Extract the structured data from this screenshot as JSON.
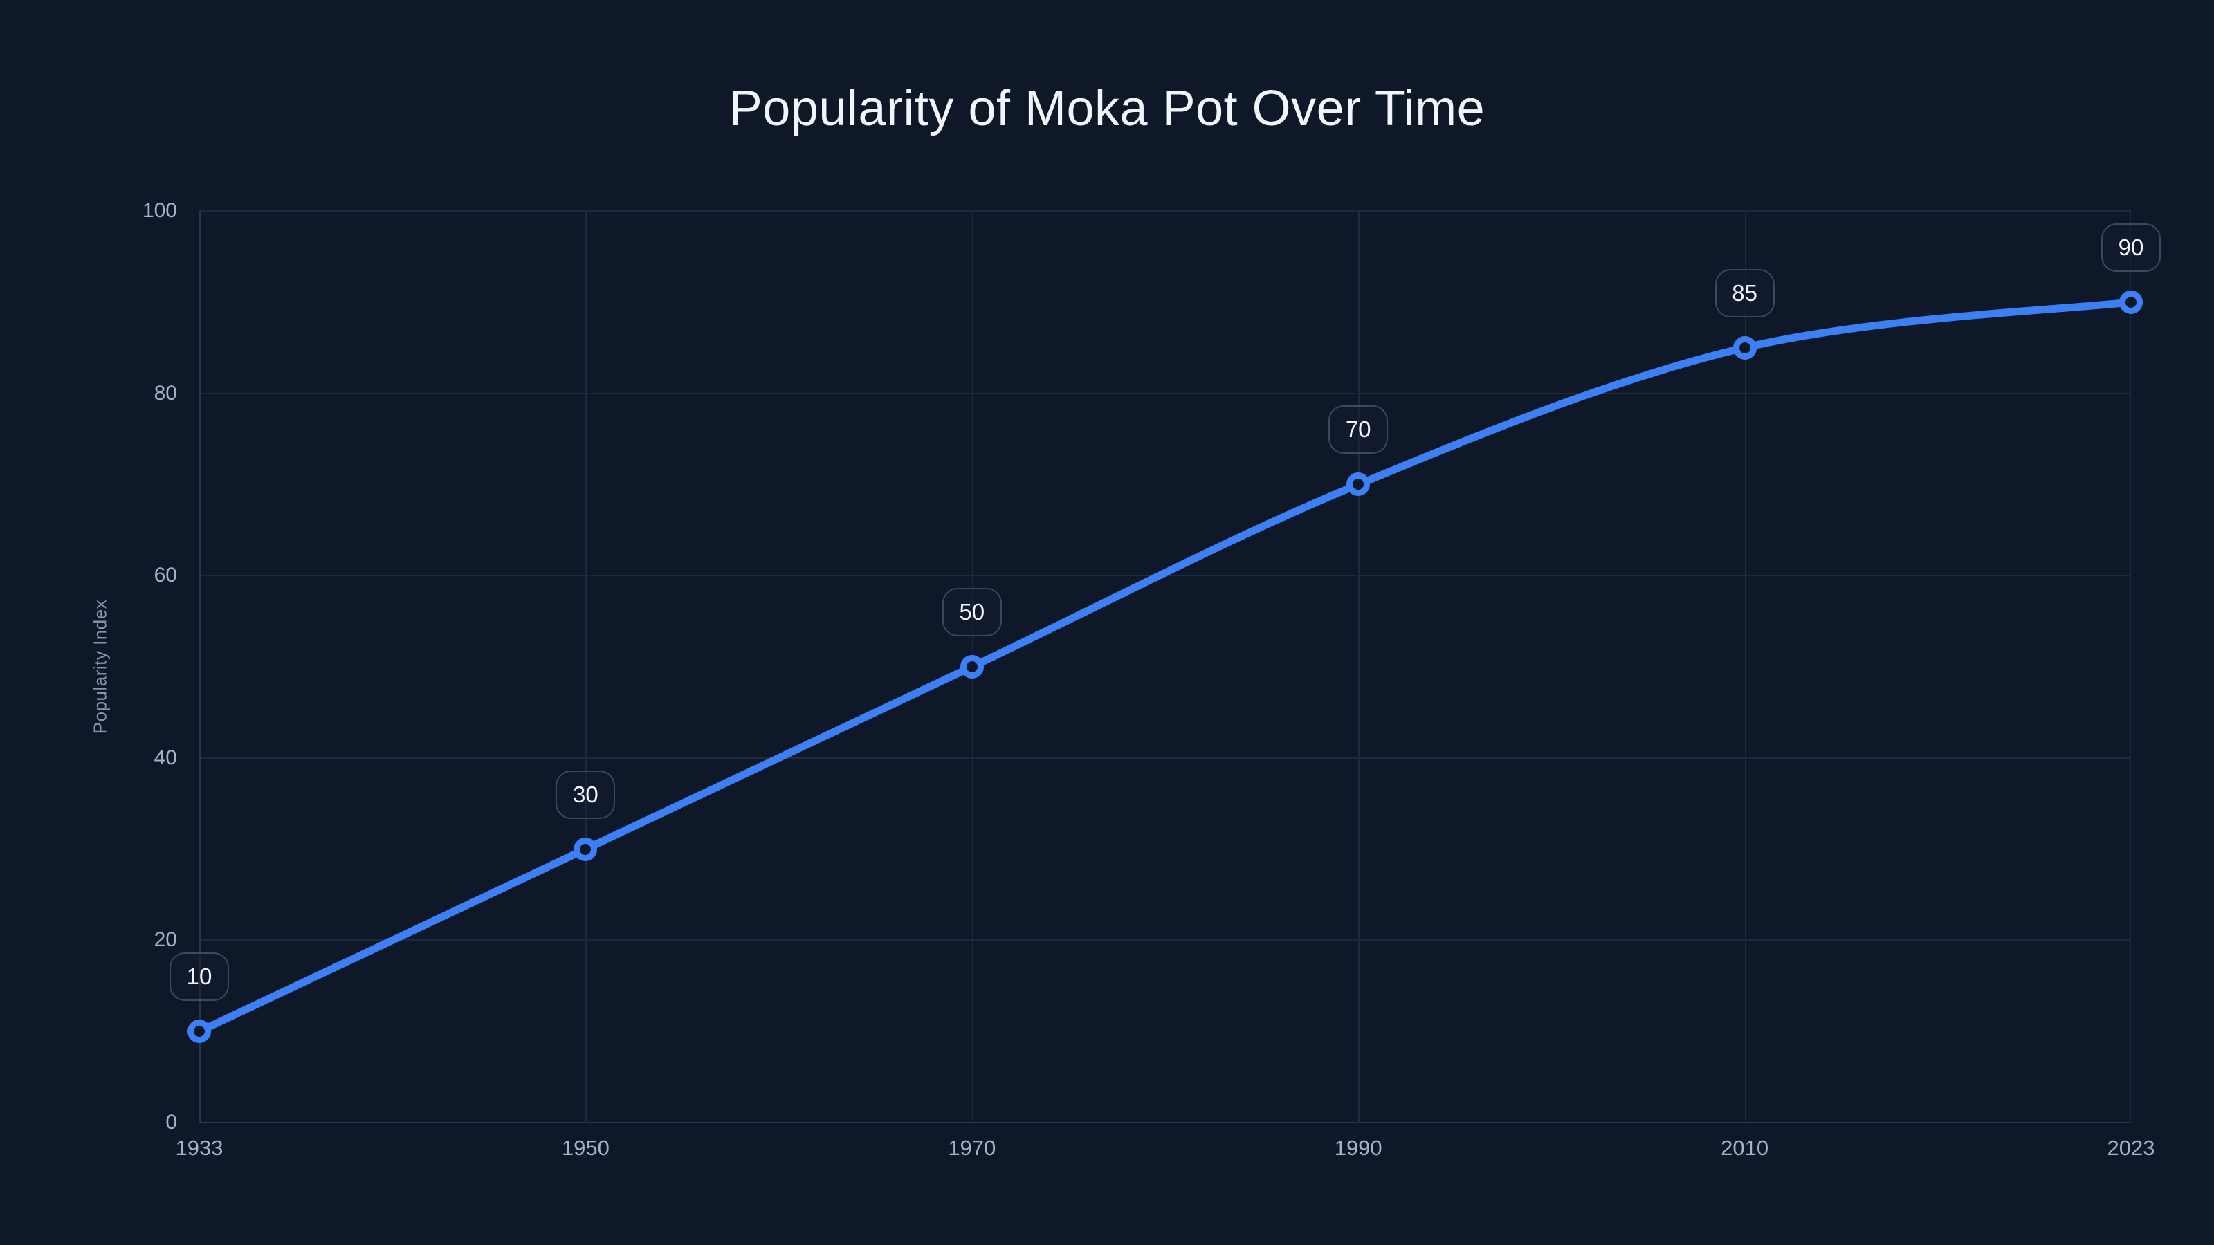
{
  "title": "Popularity of Moka Pot Over Time",
  "colors": {
    "background": "#0f1828",
    "line": "#3d80f6",
    "grid": "#1f2a3d",
    "axis_line": "#2a3650",
    "tick_text": "#a6b2c5",
    "axis_title_text": "#8795ac",
    "title_text": "#f2f6fb",
    "point_label_text": "#f2f6fb",
    "point_label_border": "#3e4960"
  },
  "chart_data": {
    "type": "line",
    "title": "Popularity of Moka Pot Over Time",
    "categories": [
      "1933",
      "1950",
      "1970",
      "1990",
      "2010",
      "2023"
    ],
    "series": [
      {
        "name": "Popularity Index",
        "values": [
          10,
          30,
          50,
          70,
          85,
          90
        ]
      }
    ],
    "point_labels": [
      "10",
      "30",
      "50",
      "70",
      "85",
      "90"
    ],
    "xlabel": "",
    "ylabel": "Popularity Index",
    "ylim": [
      0,
      100
    ],
    "yticks": [
      0,
      20,
      40,
      60,
      80,
      100
    ],
    "grid": true,
    "legend": "none",
    "line_smoothing": true,
    "marker_style": "open-circle"
  }
}
